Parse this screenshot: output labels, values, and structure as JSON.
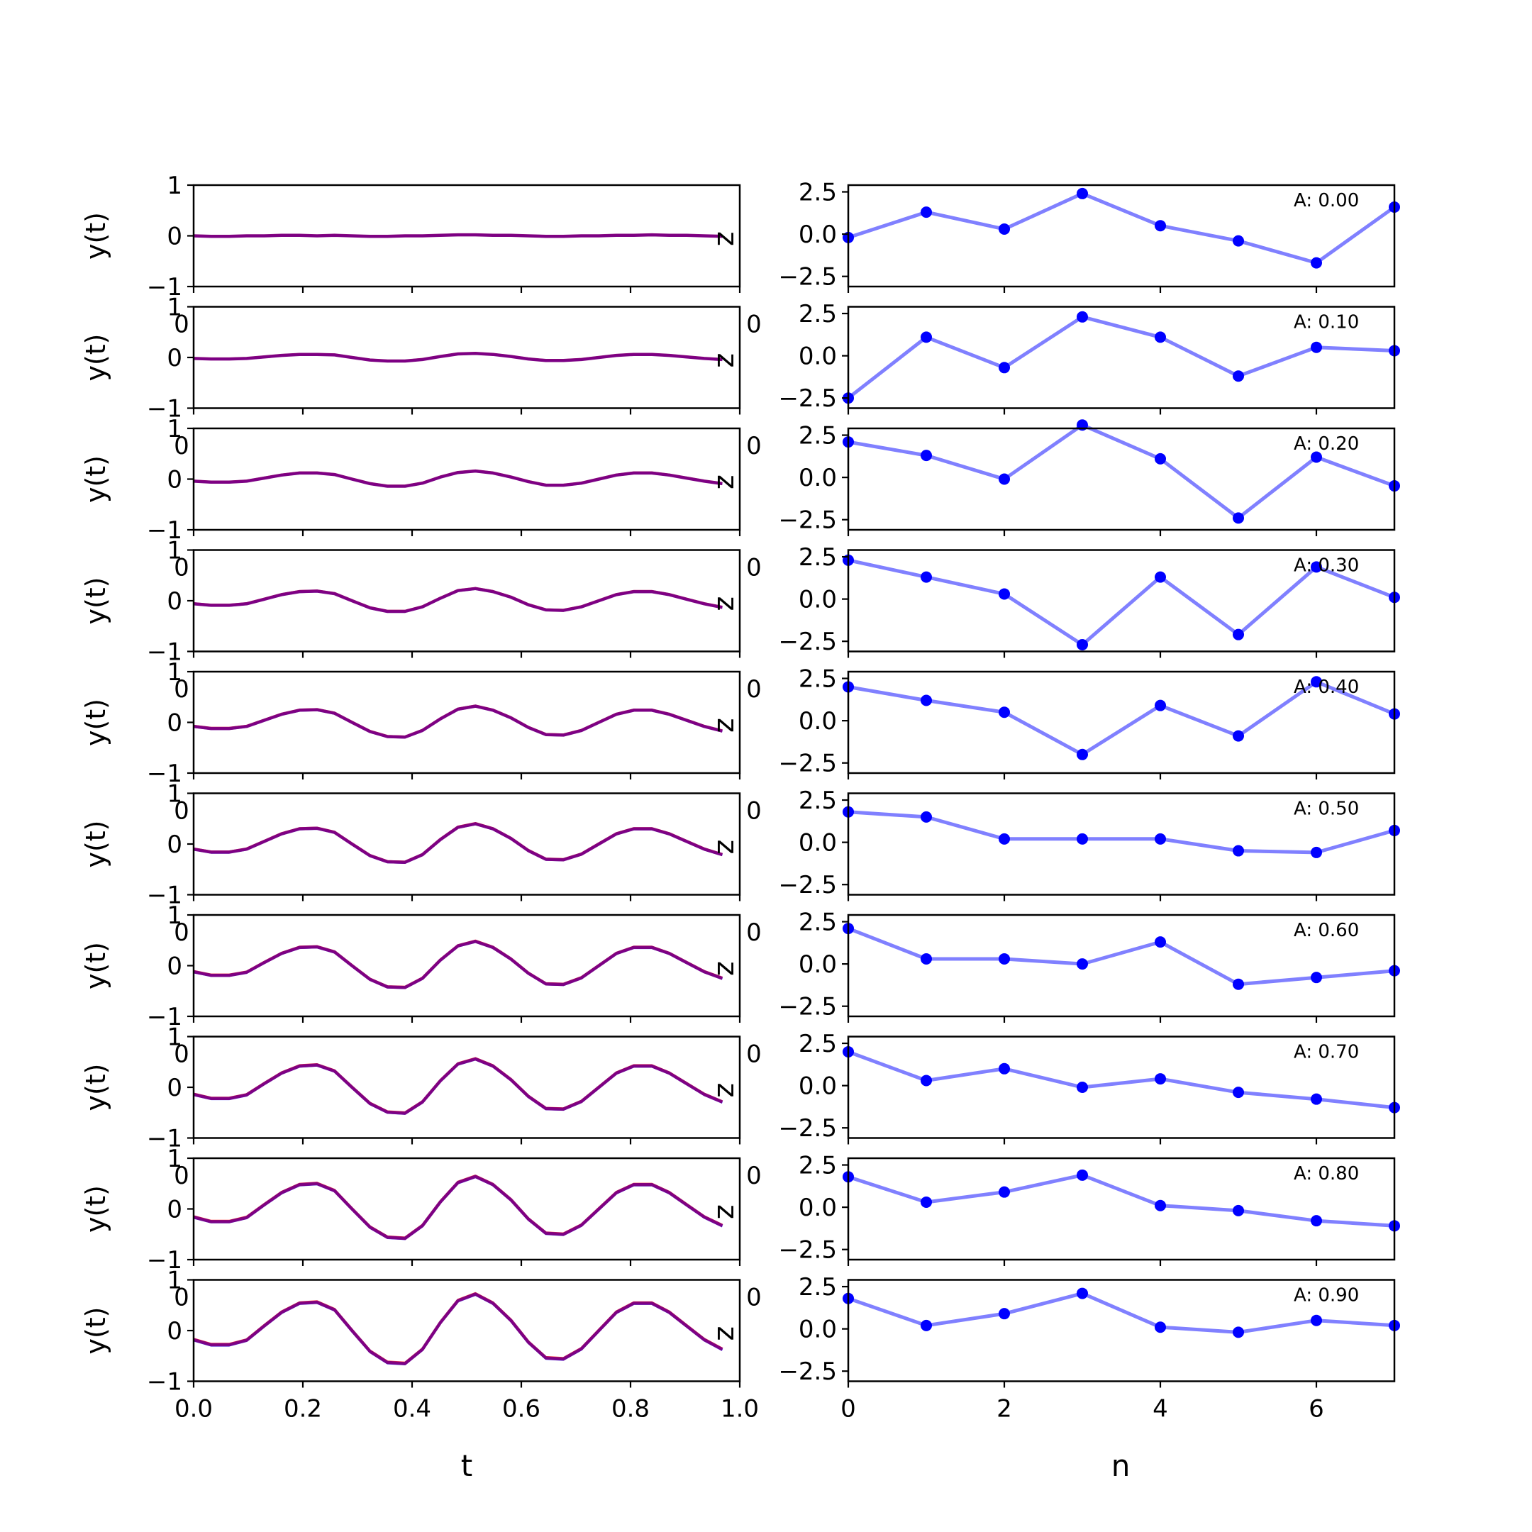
{
  "chart_data": [
    {
      "type": "line",
      "panel": "left-column",
      "xlabel": "t",
      "ylabel": "y(t)",
      "xlim": [
        0.0,
        1.0
      ],
      "ylim": [
        -1,
        1
      ],
      "xticks": [
        "0.0",
        "0.2",
        "0.4",
        "0.6",
        "0.8",
        "1.0"
      ],
      "yticks": [
        "1",
        "0",
        "-1"
      ],
      "overlap_tick_label": "0",
      "stray_label": "z",
      "series_colors": [
        "#ff0000",
        "#0000ff",
        "#7f007f"
      ],
      "t": [
        0.0,
        0.032,
        0.065,
        0.097,
        0.129,
        0.161,
        0.194,
        0.226,
        0.258,
        0.29,
        0.323,
        0.355,
        0.387,
        0.419,
        0.452,
        0.484,
        0.516,
        0.548,
        0.581,
        0.613,
        0.645,
        0.677,
        0.71,
        0.742,
        0.774,
        0.806,
        0.839,
        0.871,
        0.903,
        0.935,
        0.968
      ],
      "rows": [
        {
          "amplitude": 0.0,
          "y": [
            0.0,
            -0.01,
            -0.01,
            0.0,
            0.0,
            0.01,
            0.01,
            0.0,
            0.01,
            0.0,
            -0.01,
            -0.01,
            0.0,
            0.0,
            0.01,
            0.02,
            0.02,
            0.01,
            0.01,
            0.0,
            -0.01,
            -0.01,
            0.0,
            0.0,
            0.01,
            0.01,
            0.02,
            0.01,
            0.01,
            0.0,
            -0.01
          ]
        },
        {
          "amplitude": 0.1,
          "y": [
            -0.02,
            -0.03,
            -0.03,
            -0.02,
            0.01,
            0.04,
            0.06,
            0.06,
            0.05,
            0.0,
            -0.05,
            -0.07,
            -0.07,
            -0.04,
            0.02,
            0.07,
            0.08,
            0.06,
            0.02,
            -0.03,
            -0.06,
            -0.06,
            -0.04,
            0.0,
            0.04,
            0.06,
            0.06,
            0.04,
            0.01,
            -0.02,
            -0.04
          ]
        },
        {
          "amplitude": 0.2,
          "y": [
            -0.04,
            -0.06,
            -0.06,
            -0.04,
            0.02,
            0.08,
            0.12,
            0.12,
            0.09,
            0.0,
            -0.09,
            -0.14,
            -0.14,
            -0.08,
            0.04,
            0.13,
            0.16,
            0.12,
            0.04,
            -0.05,
            -0.12,
            -0.12,
            -0.08,
            0.0,
            0.08,
            0.12,
            0.12,
            0.08,
            0.02,
            -0.04,
            -0.09
          ]
        },
        {
          "amplitude": 0.3,
          "y": [
            -0.06,
            -0.09,
            -0.09,
            -0.06,
            0.03,
            0.12,
            0.18,
            0.19,
            0.14,
            0.0,
            -0.14,
            -0.21,
            -0.21,
            -0.12,
            0.05,
            0.2,
            0.24,
            0.18,
            0.07,
            -0.08,
            -0.18,
            -0.19,
            -0.12,
            0.0,
            0.12,
            0.18,
            0.18,
            0.12,
            0.03,
            -0.06,
            -0.13
          ]
        },
        {
          "amplitude": 0.4,
          "y": [
            -0.08,
            -0.12,
            -0.12,
            -0.08,
            0.04,
            0.16,
            0.24,
            0.25,
            0.18,
            0.0,
            -0.18,
            -0.28,
            -0.29,
            -0.16,
            0.07,
            0.26,
            0.32,
            0.24,
            0.09,
            -0.1,
            -0.24,
            -0.25,
            -0.16,
            0.0,
            0.16,
            0.24,
            0.24,
            0.16,
            0.04,
            -0.08,
            -0.17
          ]
        },
        {
          "amplitude": 0.5,
          "y": [
            -0.1,
            -0.16,
            -0.16,
            -0.1,
            0.05,
            0.2,
            0.3,
            0.31,
            0.23,
            0.0,
            -0.23,
            -0.35,
            -0.36,
            -0.21,
            0.09,
            0.33,
            0.4,
            0.3,
            0.11,
            -0.13,
            -0.3,
            -0.31,
            -0.2,
            0.0,
            0.2,
            0.3,
            0.3,
            0.2,
            0.05,
            -0.1,
            -0.21
          ]
        },
        {
          "amplitude": 0.6,
          "y": [
            -0.12,
            -0.19,
            -0.19,
            -0.13,
            0.06,
            0.24,
            0.36,
            0.37,
            0.27,
            0.0,
            -0.27,
            -0.42,
            -0.43,
            -0.25,
            0.11,
            0.39,
            0.48,
            0.36,
            0.13,
            -0.15,
            -0.36,
            -0.37,
            -0.24,
            0.0,
            0.24,
            0.36,
            0.36,
            0.24,
            0.06,
            -0.12,
            -0.25
          ]
        },
        {
          "amplitude": 0.7,
          "y": [
            -0.14,
            -0.22,
            -0.22,
            -0.15,
            0.07,
            0.28,
            0.42,
            0.44,
            0.32,
            0.0,
            -0.32,
            -0.49,
            -0.51,
            -0.29,
            0.13,
            0.46,
            0.56,
            0.42,
            0.15,
            -0.18,
            -0.42,
            -0.43,
            -0.28,
            0.0,
            0.28,
            0.42,
            0.42,
            0.28,
            0.07,
            -0.14,
            -0.29
          ]
        },
        {
          "amplitude": 0.8,
          "y": [
            -0.16,
            -0.25,
            -0.25,
            -0.17,
            0.08,
            0.32,
            0.48,
            0.5,
            0.36,
            0.0,
            -0.36,
            -0.56,
            -0.58,
            -0.33,
            0.14,
            0.52,
            0.64,
            0.48,
            0.18,
            -0.2,
            -0.48,
            -0.5,
            -0.32,
            0.0,
            0.32,
            0.48,
            0.48,
            0.32,
            0.08,
            -0.16,
            -0.33
          ]
        },
        {
          "amplitude": 0.9,
          "y": [
            -0.18,
            -0.28,
            -0.28,
            -0.19,
            0.09,
            0.36,
            0.54,
            0.56,
            0.41,
            0.0,
            -0.41,
            -0.63,
            -0.65,
            -0.37,
            0.16,
            0.59,
            0.72,
            0.54,
            0.2,
            -0.23,
            -0.54,
            -0.56,
            -0.36,
            0.0,
            0.36,
            0.54,
            0.54,
            0.36,
            0.09,
            -0.18,
            -0.37
          ]
        }
      ]
    },
    {
      "type": "line",
      "panel": "right-column",
      "xlabel": "n",
      "xlim": [
        0,
        7
      ],
      "ylim": [
        -3.1,
        2.9
      ],
      "xticks": [
        "0",
        "2",
        "4",
        "6"
      ],
      "yticks": [
        "2.5",
        "0.0",
        "-2.5"
      ],
      "overlap_tick_label": "0",
      "marker_color": "#0000ff",
      "line_color": "#8080ff",
      "n": [
        0,
        1,
        2,
        3,
        4,
        5,
        6,
        7
      ],
      "rows": [
        {
          "label": "A: 0.00",
          "values": [
            -0.2,
            1.3,
            0.3,
            2.4,
            0.5,
            -0.4,
            -1.7,
            1.6
          ]
        },
        {
          "label": "A: 0.10",
          "values": [
            -2.5,
            1.1,
            -0.7,
            2.3,
            1.1,
            -1.2,
            0.5,
            0.3
          ]
        },
        {
          "label": "A: 0.20",
          "values": [
            2.1,
            1.3,
            -0.1,
            3.1,
            1.1,
            -2.4,
            1.2,
            -0.5
          ]
        },
        {
          "label": "A: 0.30",
          "values": [
            2.3,
            1.3,
            0.3,
            -2.7,
            1.3,
            -2.1,
            1.9,
            0.1
          ]
        },
        {
          "label": "A: 0.40",
          "values": [
            2.0,
            1.2,
            0.5,
            -2.0,
            0.9,
            -0.9,
            2.3,
            0.4
          ]
        },
        {
          "label": "A: 0.50",
          "values": [
            1.8,
            1.5,
            0.2,
            0.2,
            0.2,
            -0.5,
            -0.6,
            0.7
          ]
        },
        {
          "label": "A: 0.60",
          "values": [
            2.1,
            0.3,
            0.3,
            0.0,
            1.3,
            -1.2,
            -0.8,
            -0.4
          ]
        },
        {
          "label": "A: 0.70",
          "values": [
            2.0,
            0.3,
            1.0,
            -0.1,
            0.4,
            -0.4,
            -0.8,
            -1.3
          ]
        },
        {
          "label": "A: 0.80",
          "values": [
            1.8,
            0.3,
            0.9,
            1.9,
            0.1,
            -0.2,
            -0.8,
            -1.1
          ]
        },
        {
          "label": "A: 0.90",
          "values": [
            1.8,
            0.2,
            0.9,
            2.1,
            0.1,
            -0.2,
            0.5,
            0.2
          ]
        }
      ]
    }
  ]
}
